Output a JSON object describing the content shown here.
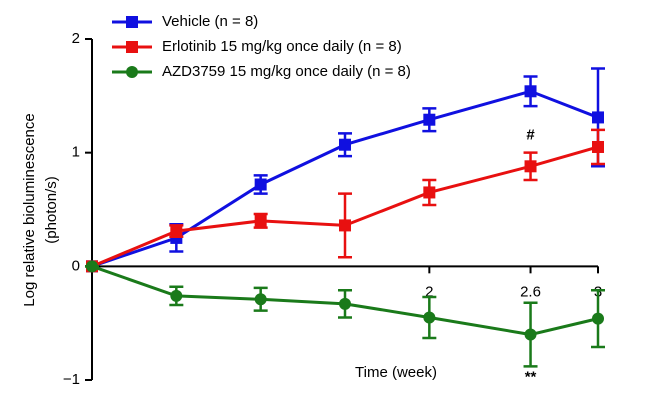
{
  "chart_data": {
    "type": "line",
    "ylabel": [
      "Log relative bioluminescence",
      "(photon/s)"
    ],
    "xlabel": "Time (week)",
    "x": [
      0,
      0.5,
      1,
      1.5,
      2,
      2.6,
      3
    ],
    "series": [
      {
        "name": "Vehicle (n = 8)",
        "color": "#1010e0",
        "marker": "square",
        "values": [
          0,
          0.25,
          0.72,
          1.07,
          1.29,
          1.54,
          1.31
        ],
        "errors": [
          0,
          0.12,
          0.08,
          0.1,
          0.1,
          0.13,
          0.43
        ]
      },
      {
        "name": "Erlotinib 15 mg/kg once daily (n = 8)",
        "color": "#e81010",
        "marker": "square",
        "values": [
          0,
          0.31,
          0.4,
          0.36,
          0.65,
          0.88,
          1.05
        ],
        "errors": [
          0,
          0.05,
          0.06,
          0.28,
          0.11,
          0.12,
          0.15
        ]
      },
      {
        "name": "AZD3759 15 mg/kg once daily (n = 8)",
        "color": "#1a7a1a",
        "marker": "circle",
        "values": [
          0,
          -0.26,
          -0.29,
          -0.33,
          -0.45,
          -0.6,
          -0.46
        ],
        "errors": [
          0,
          0.08,
          0.1,
          0.12,
          0.18,
          0.28,
          0.25
        ]
      }
    ],
    "annotations": [
      {
        "text": "#",
        "x": 2.6,
        "y": 1.15
      },
      {
        "text": "**",
        "x": 2.6,
        "y": -0.98
      }
    ],
    "xlim": [
      0,
      3
    ],
    "xticks": [
      2,
      2.6,
      3
    ],
    "ylim": [
      -1,
      2
    ],
    "yticks": [
      {
        "value": -1,
        "label": "−1"
      },
      0,
      1,
      2
    ],
    "legend": "top-left"
  }
}
